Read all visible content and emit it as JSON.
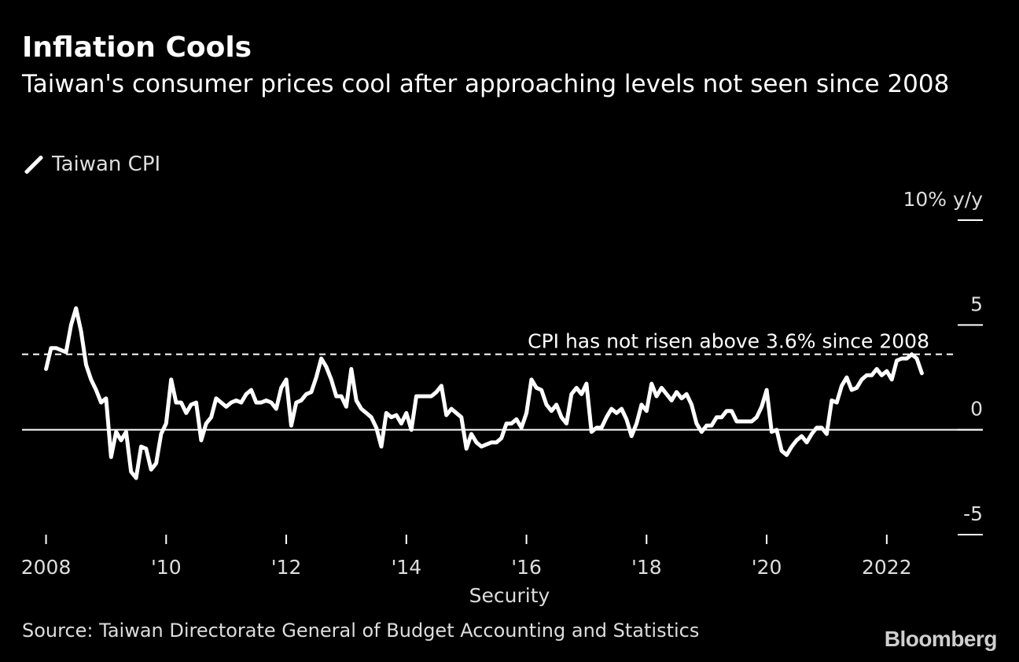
{
  "title": "Inflation Cools",
  "subtitle": "Taiwan's consumer prices cool after approaching levels not seen since 2008",
  "source": "Source: Taiwan Directorate General of Budget Accounting and Statistics",
  "brand": "Bloomberg",
  "colors": {
    "background": "#000000",
    "line": "#ffffff",
    "text": "#dddddd"
  },
  "chart_data": {
    "type": "line",
    "legend": [
      "Taiwan CPI"
    ],
    "legend_position": "top-left",
    "xlabel": "Security",
    "ylabel": "10% y/y",
    "ylim": [
      -5,
      10
    ],
    "yticks": [
      {
        "value": 10,
        "label": "10% y/y"
      },
      {
        "value": 5,
        "label": "5"
      },
      {
        "value": 0,
        "label": "0"
      },
      {
        "value": -5,
        "label": "-5"
      }
    ],
    "xticks": [
      {
        "value": 2008,
        "label": "2008"
      },
      {
        "value": 2010,
        "label": "'10"
      },
      {
        "value": 2012,
        "label": "'12"
      },
      {
        "value": 2014,
        "label": "'14"
      },
      {
        "value": 2016,
        "label": "'16"
      },
      {
        "value": 2018,
        "label": "'18"
      },
      {
        "value": 2020,
        "label": "'20"
      },
      {
        "value": 2022,
        "label": "2022"
      }
    ],
    "xlim": [
      2007.6,
      2023.6
    ],
    "reference_line": {
      "value": 3.6,
      "label": "CPI has not risen above 3.6% since 2008",
      "style": "dashed"
    },
    "zero_line": 0,
    "grid": false,
    "series": [
      {
        "name": "Taiwan CPI",
        "points": [
          [
            "2008-01",
            2.9
          ],
          [
            "2008-02",
            3.9
          ],
          [
            "2008-03",
            3.9
          ],
          [
            "2008-04",
            3.8
          ],
          [
            "2008-05",
            3.7
          ],
          [
            "2008-06",
            5.0
          ],
          [
            "2008-07",
            5.8
          ],
          [
            "2008-08",
            4.7
          ],
          [
            "2008-09",
            3.1
          ],
          [
            "2008-10",
            2.4
          ],
          [
            "2008-11",
            1.9
          ],
          [
            "2008-12",
            1.3
          ],
          [
            "2009-01",
            1.5
          ],
          [
            "2009-02",
            -1.3
          ],
          [
            "2009-03",
            -0.1
          ],
          [
            "2009-04",
            -0.5
          ],
          [
            "2009-05",
            -0.1
          ],
          [
            "2009-06",
            -2.0
          ],
          [
            "2009-07",
            -2.3
          ],
          [
            "2009-08",
            -0.8
          ],
          [
            "2009-09",
            -0.9
          ],
          [
            "2009-10",
            -1.9
          ],
          [
            "2009-11",
            -1.6
          ],
          [
            "2009-12",
            -0.2
          ],
          [
            "2010-01",
            0.3
          ],
          [
            "2010-02",
            2.4
          ],
          [
            "2010-03",
            1.3
          ],
          [
            "2010-04",
            1.3
          ],
          [
            "2010-05",
            0.8
          ],
          [
            "2010-06",
            1.2
          ],
          [
            "2010-07",
            1.3
          ],
          [
            "2010-08",
            -0.5
          ],
          [
            "2010-09",
            0.3
          ],
          [
            "2010-10",
            0.6
          ],
          [
            "2010-11",
            1.5
          ],
          [
            "2010-12",
            1.3
          ],
          [
            "2011-01",
            1.1
          ],
          [
            "2011-02",
            1.3
          ],
          [
            "2011-03",
            1.4
          ],
          [
            "2011-04",
            1.3
          ],
          [
            "2011-05",
            1.7
          ],
          [
            "2011-06",
            1.9
          ],
          [
            "2011-07",
            1.3
          ],
          [
            "2011-08",
            1.3
          ],
          [
            "2011-09",
            1.4
          ],
          [
            "2011-10",
            1.3
          ],
          [
            "2011-11",
            1.0
          ],
          [
            "2011-12",
            2.0
          ],
          [
            "2012-01",
            2.4
          ],
          [
            "2012-02",
            0.2
          ],
          [
            "2012-03",
            1.3
          ],
          [
            "2012-04",
            1.4
          ],
          [
            "2012-05",
            1.7
          ],
          [
            "2012-06",
            1.8
          ],
          [
            "2012-07",
            2.5
          ],
          [
            "2012-08",
            3.4
          ],
          [
            "2012-09",
            3.0
          ],
          [
            "2012-10",
            2.4
          ],
          [
            "2012-11",
            1.6
          ],
          [
            "2012-12",
            1.6
          ],
          [
            "2013-01",
            1.1
          ],
          [
            "2013-02",
            2.9
          ],
          [
            "2013-03",
            1.4
          ],
          [
            "2013-04",
            1.0
          ],
          [
            "2013-05",
            0.8
          ],
          [
            "2013-06",
            0.6
          ],
          [
            "2013-07",
            0.1
          ],
          [
            "2013-08",
            -0.8
          ],
          [
            "2013-09",
            0.8
          ],
          [
            "2013-10",
            0.6
          ],
          [
            "2013-11",
            0.7
          ],
          [
            "2013-12",
            0.3
          ],
          [
            "2014-01",
            0.8
          ],
          [
            "2014-02",
            0.0
          ],
          [
            "2014-03",
            1.6
          ],
          [
            "2014-04",
            1.6
          ],
          [
            "2014-05",
            1.6
          ],
          [
            "2014-06",
            1.6
          ],
          [
            "2014-07",
            1.8
          ],
          [
            "2014-08",
            2.1
          ],
          [
            "2014-09",
            0.7
          ],
          [
            "2014-10",
            1.0
          ],
          [
            "2014-11",
            0.8
          ],
          [
            "2014-12",
            0.6
          ],
          [
            "2015-01",
            -0.9
          ],
          [
            "2015-02",
            -0.2
          ],
          [
            "2015-03",
            -0.6
          ],
          [
            "2015-04",
            -0.8
          ],
          [
            "2015-05",
            -0.7
          ],
          [
            "2015-06",
            -0.6
          ],
          [
            "2015-07",
            -0.6
          ],
          [
            "2015-08",
            -0.4
          ],
          [
            "2015-09",
            0.3
          ],
          [
            "2015-10",
            0.3
          ],
          [
            "2015-11",
            0.5
          ],
          [
            "2015-12",
            0.1
          ],
          [
            "2016-01",
            0.8
          ],
          [
            "2016-02",
            2.4
          ],
          [
            "2016-03",
            2.0
          ],
          [
            "2016-04",
            1.9
          ],
          [
            "2016-05",
            1.2
          ],
          [
            "2016-06",
            0.9
          ],
          [
            "2016-07",
            1.2
          ],
          [
            "2016-08",
            0.6
          ],
          [
            "2016-09",
            0.3
          ],
          [
            "2016-10",
            1.7
          ],
          [
            "2016-11",
            2.0
          ],
          [
            "2016-12",
            1.7
          ],
          [
            "2017-01",
            2.2
          ],
          [
            "2017-02",
            -0.1
          ],
          [
            "2017-03",
            0.1
          ],
          [
            "2017-04",
            0.1
          ],
          [
            "2017-05",
            0.6
          ],
          [
            "2017-06",
            1.0
          ],
          [
            "2017-07",
            0.8
          ],
          [
            "2017-08",
            1.0
          ],
          [
            "2017-09",
            0.5
          ],
          [
            "2017-10",
            -0.3
          ],
          [
            "2017-11",
            0.3
          ],
          [
            "2017-12",
            1.2
          ],
          [
            "2018-01",
            0.9
          ],
          [
            "2018-02",
            2.2
          ],
          [
            "2018-03",
            1.6
          ],
          [
            "2018-04",
            2.0
          ],
          [
            "2018-05",
            1.7
          ],
          [
            "2018-06",
            1.4
          ],
          [
            "2018-07",
            1.8
          ],
          [
            "2018-08",
            1.5
          ],
          [
            "2018-09",
            1.7
          ],
          [
            "2018-10",
            1.2
          ],
          [
            "2018-11",
            0.3
          ],
          [
            "2018-12",
            -0.1
          ],
          [
            "2019-01",
            0.2
          ],
          [
            "2019-02",
            0.2
          ],
          [
            "2019-03",
            0.6
          ],
          [
            "2019-04",
            0.6
          ],
          [
            "2019-05",
            0.9
          ],
          [
            "2019-06",
            0.9
          ],
          [
            "2019-07",
            0.4
          ],
          [
            "2019-08",
            0.4
          ],
          [
            "2019-09",
            0.4
          ],
          [
            "2019-10",
            0.4
          ],
          [
            "2019-11",
            0.6
          ],
          [
            "2019-12",
            1.1
          ],
          [
            "2020-01",
            1.9
          ],
          [
            "2020-02",
            -0.1
          ],
          [
            "2020-03",
            0.0
          ],
          [
            "2020-04",
            -1.0
          ],
          [
            "2020-05",
            -1.2
          ],
          [
            "2020-06",
            -0.8
          ],
          [
            "2020-07",
            -0.5
          ],
          [
            "2020-08",
            -0.3
          ],
          [
            "2020-09",
            -0.6
          ],
          [
            "2020-10",
            -0.2
          ],
          [
            "2020-11",
            0.1
          ],
          [
            "2020-12",
            0.1
          ],
          [
            "2021-01",
            -0.2
          ],
          [
            "2021-02",
            1.4
          ],
          [
            "2021-03",
            1.3
          ],
          [
            "2021-04",
            2.1
          ],
          [
            "2021-05",
            2.5
          ],
          [
            "2021-06",
            1.9
          ],
          [
            "2021-07",
            2.0
          ],
          [
            "2021-08",
            2.4
          ],
          [
            "2021-09",
            2.6
          ],
          [
            "2021-10",
            2.6
          ],
          [
            "2021-11",
            2.9
          ],
          [
            "2021-12",
            2.6
          ],
          [
            "2022-01",
            2.8
          ],
          [
            "2022-02",
            2.4
          ],
          [
            "2022-03",
            3.3
          ],
          [
            "2022-04",
            3.4
          ],
          [
            "2022-05",
            3.4
          ],
          [
            "2022-06",
            3.6
          ],
          [
            "2022-07",
            3.4
          ],
          [
            "2022-08",
            2.7
          ]
        ]
      }
    ]
  }
}
